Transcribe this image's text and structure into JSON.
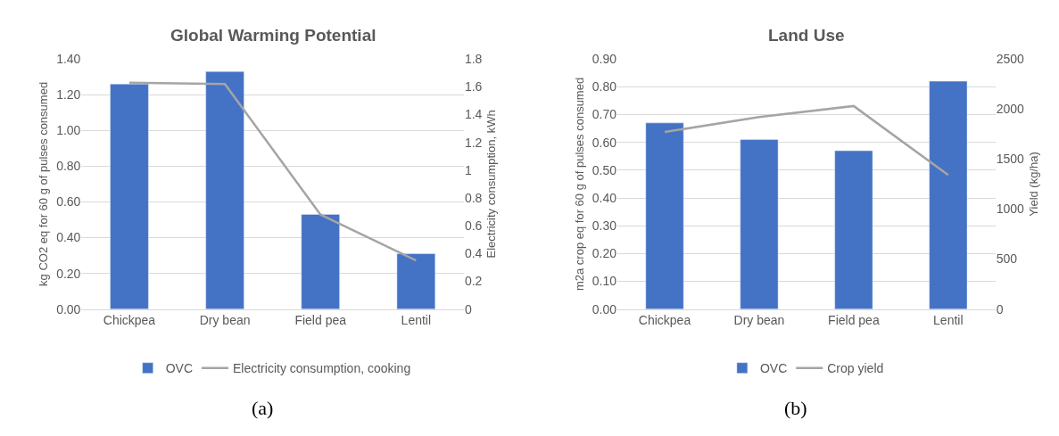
{
  "chart_data": [
    {
      "type": "bar",
      "title": "Global Warming Potential",
      "categories": [
        "Chickpea",
        "Dry bean",
        "Field pea",
        "Lentil"
      ],
      "ylabel": "kg CO2 eq for 60 g of pulses consumed",
      "y2label": "Electricity consumption, kWh",
      "ylim": [
        0,
        1.4
      ],
      "yticks": [
        {
          "value": 0,
          "label": "0.00"
        },
        {
          "value": 0.2,
          "label": "0.20"
        },
        {
          "value": 0.4,
          "label": "0.40"
        },
        {
          "value": 0.6,
          "label": "0.60"
        },
        {
          "value": 0.8,
          "label": "0.80"
        },
        {
          "value": 1,
          "label": "1.00"
        },
        {
          "value": 1.2,
          "label": "1.20"
        },
        {
          "value": 1.4,
          "label": "1.40"
        }
      ],
      "y2lim": [
        0,
        1.8
      ],
      "y2ticks": [
        0,
        0.2,
        0.4,
        0.6,
        0.8,
        1,
        1.2,
        1.4,
        1.6,
        1.8
      ],
      "series": [
        {
          "name": "OVC",
          "color": "#4472c4",
          "values": [
            1.26,
            1.33,
            0.53,
            0.31
          ]
        },
        {
          "name": "Electricity consumption, cooking",
          "type": "line",
          "axis": "y2",
          "color": "#a5a5a5",
          "values": [
            1.63,
            1.62,
            0.68,
            0.35
          ]
        }
      ],
      "grid": "y",
      "legend": "bottom",
      "marker": "none",
      "annotations": [
        "(a)"
      ]
    },
    {
      "type": "bar",
      "title": "Land Use",
      "categories": [
        "Chickpea",
        "Dry bean",
        "Field pea",
        "Lentil"
      ],
      "ylabel": "m2a crop eq for 60 g of pulses consumed",
      "y2label": "Yield (kg/ha)",
      "ylim": [
        0,
        0.9
      ],
      "yticks": [
        {
          "value": 0,
          "label": "0.00"
        },
        {
          "value": 0.1,
          "label": "0.10"
        },
        {
          "value": 0.2,
          "label": "0.20"
        },
        {
          "value": 0.3,
          "label": "0.30"
        },
        {
          "value": 0.4,
          "label": "0.40"
        },
        {
          "value": 0.5,
          "label": "0.50"
        },
        {
          "value": 0.6,
          "label": "0.60"
        },
        {
          "value": 0.7,
          "label": "0.70"
        },
        {
          "value": 0.8,
          "label": "0.80"
        },
        {
          "value": 0.9,
          "label": "0.90"
        }
      ],
      "y2lim": [
        0,
        2500
      ],
      "y2ticks": [
        0,
        500,
        1000,
        1500,
        2000,
        2500
      ],
      "series": [
        {
          "name": "OVC",
          "color": "#4472c4",
          "values": [
            0.67,
            0.61,
            0.57,
            0.82
          ]
        },
        {
          "name": "Crop yield",
          "type": "line",
          "axis": "y2",
          "color": "#a5a5a5",
          "values": [
            1770,
            1920,
            2030,
            1340
          ]
        }
      ],
      "grid": "y",
      "legend": "bottom",
      "marker": "none",
      "annotations": [
        "(b)"
      ]
    }
  ]
}
